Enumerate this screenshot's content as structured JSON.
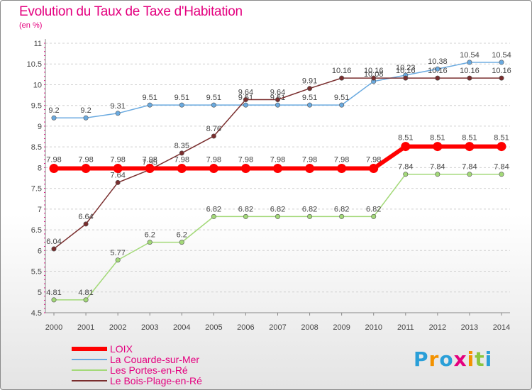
{
  "title": "Evolution du Taux de Taxe d'Habitation",
  "subtitle": "(en %)",
  "brand": {
    "text": "Proxiti",
    "letters": [
      "P",
      "r",
      "o",
      "x",
      "i",
      "t",
      "i"
    ],
    "colors": [
      "#2a9fd8",
      "#f39200",
      "#2a9fd8",
      "#e4007f",
      "#f39200",
      "#8cc63f",
      "#2a9fd8"
    ]
  },
  "chart_data": {
    "type": "line",
    "title": "Evolution du Taux de Taxe d'Habitation",
    "subtitle": "(en %)",
    "x": [
      "2000",
      "2001",
      "2002",
      "2003",
      "2004",
      "2005",
      "2006",
      "2007",
      "2008",
      "2009",
      "2010",
      "2011",
      "2012",
      "2013",
      "2014"
    ],
    "ylim": [
      4.5,
      11
    ],
    "yticks": [
      "4.5",
      "5",
      "5.5",
      "6",
      "6.5",
      "7",
      "7.5",
      "8",
      "8.5",
      "9",
      "9.5",
      "10",
      "10.5",
      "11"
    ],
    "grid": "horizontal",
    "legend_position": "bottom-left",
    "series": [
      {
        "name": "LOIX",
        "color": "#ff0000",
        "values": [
          7.98,
          7.98,
          7.98,
          7.98,
          7.98,
          7.98,
          7.98,
          7.98,
          7.98,
          7.98,
          7.98,
          8.51,
          8.51,
          8.51,
          8.51
        ],
        "labels": [
          "7.98",
          "7.98",
          "7.98",
          "7.98",
          "7.98",
          "7.98",
          "7.98",
          "7.98",
          "7.98",
          "7.98",
          "7.98",
          "8.51",
          "8.51",
          "8.51",
          "8.51"
        ]
      },
      {
        "name": "La Couarde-sur-Mer",
        "color": "#6aaae0",
        "values": [
          9.2,
          9.2,
          9.31,
          9.51,
          9.51,
          9.51,
          9.51,
          9.51,
          9.51,
          9.51,
          10.08,
          10.23,
          10.38,
          10.54,
          10.54
        ],
        "labels": [
          "9.2",
          "9.2",
          "9.31",
          "9.51",
          "9.51",
          "9.51",
          "9.51",
          "9.51",
          "9.51",
          "9.51",
          "10.08",
          "10.23",
          "10.38",
          "10.54",
          "10.54"
        ]
      },
      {
        "name": "Les Portes-en-Ré",
        "color": "#a3d978",
        "values": [
          4.81,
          4.81,
          5.77,
          6.2,
          6.2,
          6.82,
          6.82,
          6.82,
          6.82,
          6.82,
          6.82,
          7.84,
          7.84,
          7.84,
          7.84
        ],
        "labels": [
          "4.81",
          "4.81",
          "5.77",
          "6.2",
          "6.2",
          "6.82",
          "6.82",
          "6.82",
          "6.82",
          "6.82",
          "6.82",
          "7.84",
          "7.84",
          "7.84",
          "7.84"
        ]
      },
      {
        "name": "Le Bois-Plage-en-Ré",
        "color": "#7a2e2e",
        "values": [
          6.04,
          6.64,
          7.64,
          7.95,
          8.35,
          8.76,
          9.64,
          9.64,
          9.91,
          10.16,
          10.16,
          10.16,
          10.16,
          10.16,
          10.16
        ],
        "labels": [
          "6.04",
          "6.64",
          "7.64",
          "7.95",
          "8.35",
          "8.76",
          "9.64",
          "9.64",
          "9.91",
          "10.16",
          "10.16",
          "10.16",
          "10.16",
          "10.16",
          "10.16"
        ]
      }
    ]
  }
}
